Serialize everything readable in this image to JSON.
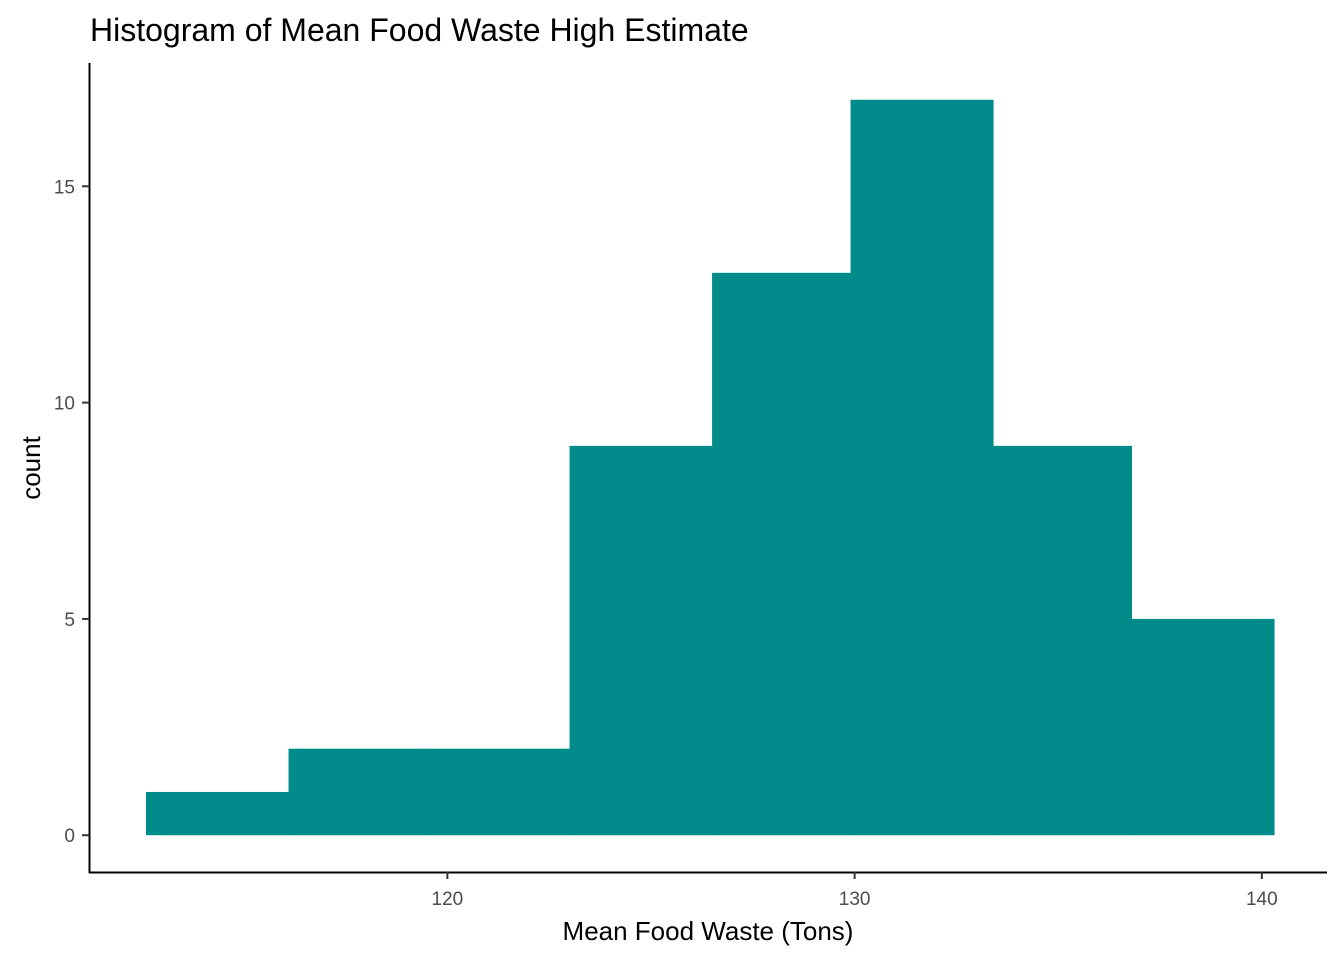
{
  "chart_data": {
    "type": "bar",
    "title": "Histogram of Mean Food Waste High Estimate",
    "xlabel": "Mean Food Waste (Tons)",
    "ylabel": "count",
    "bar_color": "#008B8B",
    "grid": false,
    "bins": [
      {
        "x0": 112.6,
        "x1": 116.1,
        "count": 1
      },
      {
        "x0": 116.1,
        "x1": 119.5,
        "count": 2
      },
      {
        "x0": 119.5,
        "x1": 123.0,
        "count": 2
      },
      {
        "x0": 123.0,
        "x1": 126.5,
        "count": 9
      },
      {
        "x0": 126.5,
        "x1": 129.9,
        "count": 13
      },
      {
        "x0": 129.9,
        "x1": 133.4,
        "count": 17
      },
      {
        "x0": 133.4,
        "x1": 136.8,
        "count": 9
      },
      {
        "x0": 136.8,
        "x1": 140.3,
        "count": 5
      }
    ],
    "xlim": [
      111.2,
      141.6
    ],
    "ylim": [
      -0.85,
      17.85
    ],
    "x_ticks": [
      120,
      130,
      140
    ],
    "y_ticks": [
      0,
      5,
      10,
      15
    ]
  }
}
